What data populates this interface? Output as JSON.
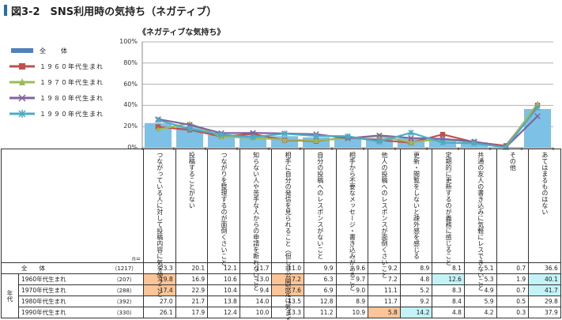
{
  "header": {
    "title": "図3-2　SNS利用時の気持ち（ネガティブ）"
  },
  "chart_data": {
    "type": "bar+line",
    "title": "《ネガティブな気持ち》",
    "ylim": [
      0,
      100
    ],
    "yticks": [
      "0%",
      "20%",
      "40%",
      "60%",
      "80%",
      "100%"
    ],
    "grid": true,
    "legend_position": "left",
    "categories": [
      "つながっている人に対して投稿内容に気を使うこと",
      "投稿することがない",
      "つながりを整理するのが面倒くさいこと",
      "知らない人や苦手な人からの申請を断れないこと",
      "相手に自分の発信を見られること（但し非公開設定は気まずい）",
      "自分の投稿へのレスポンスがないこと",
      "相手から不要なメッセージ・書き込みがあること",
      "他人の投稿へのレスポンスが面倒くさいこと",
      "更新・閲覧をしないと疎外感を感じる",
      "定期的に更新するのが義務に感じること",
      "共通の友人の書き込みに気軽にレスできないこと",
      "その他",
      "あてはまるものはない"
    ],
    "series": [
      {
        "name": "全　　体",
        "type": "bar",
        "n": "（1217）",
        "color": "#7dc1e6",
        "marker": "bar",
        "values": [
          23.3,
          20.1,
          12.1,
          11.7,
          11.0,
          9.9,
          9.6,
          9.2,
          8.9,
          8.1,
          5.1,
          0.7,
          36.6
        ]
      },
      {
        "name": "１９６０年代生まれ",
        "table_name": "1960年代生まれ",
        "type": "line",
        "n": "（207）",
        "color": "#c0504d",
        "marker": "square",
        "values": [
          19.8,
          16.9,
          10.6,
          13.0,
          7.2,
          6.3,
          9.7,
          7.2,
          4.8,
          12.6,
          5.3,
          1.9,
          40.1
        ]
      },
      {
        "name": "１９７０年代生まれ",
        "table_name": "1970年代生まれ",
        "type": "line",
        "n": "（288）",
        "color": "#9bbb59",
        "marker": "triangle",
        "values": [
          17.4,
          22.9,
          10.4,
          9.4,
          7.6,
          6.9,
          9.0,
          11.1,
          5.2,
          8.3,
          4.9,
          0.7,
          41.7
        ]
      },
      {
        "name": "１９８０年代生まれ",
        "table_name": "1980年代生まれ",
        "type": "line",
        "n": "（392）",
        "color": "#8064a2",
        "marker": "x",
        "values": [
          27.0,
          21.7,
          13.8,
          14.0,
          13.5,
          12.8,
          8.9,
          11.7,
          9.2,
          8.4,
          5.9,
          0.5,
          29.8
        ]
      },
      {
        "name": "１９９０年代生まれ",
        "table_name": "1990年代生まれ",
        "type": "line",
        "n": "（330）",
        "color": "#4bacc6",
        "marker": "asterisk",
        "values": [
          26.1,
          17.9,
          12.4,
          10.0,
          13.3,
          11.2,
          10.9,
          5.8,
          14.2,
          4.8,
          4.2,
          0.3,
          37.9
        ]
      }
    ]
  },
  "table": {
    "n_label": "n=",
    "total_label": "全　　体",
    "group_label": "年代",
    "highlights": {
      "orange": [
        [
          1,
          0
        ],
        [
          2,
          0
        ],
        [
          1,
          4
        ],
        [
          2,
          4
        ],
        [
          4,
          7
        ]
      ],
      "cyan": [
        [
          1,
          9
        ],
        [
          1,
          12
        ],
        [
          2,
          12
        ],
        [
          4,
          8
        ]
      ]
    }
  }
}
